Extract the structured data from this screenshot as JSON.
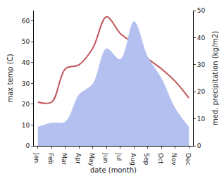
{
  "chart_data": {
    "type": "line",
    "xlabel": "date (month)",
    "ylabel": "max temp (C)",
    "y2label": "med. precipitation (kg/m2)",
    "categories": [
      "Jan",
      "Feb",
      "Mar",
      "Apr",
      "May",
      "Jun",
      "Jul",
      "Aug",
      "Sep",
      "Oct",
      "Nov",
      "Dec"
    ],
    "series": [
      {
        "type": "area",
        "axis": "y2",
        "color": "#b4c0f0",
        "values": [
          7,
          8.5,
          9,
          19,
          23,
          36,
          32,
          46,
          33,
          25,
          14,
          7
        ]
      },
      {
        "type": "line",
        "axis": "y",
        "color": "#c0585c",
        "values": [
          21,
          21,
          37,
          39,
          47,
          62,
          54,
          49,
          42,
          37,
          31,
          23
        ]
      }
    ],
    "ylim": [
      0,
      65
    ],
    "yticks": [
      0,
      10,
      20,
      30,
      40,
      50,
      60
    ],
    "y2lim": [
      0,
      50
    ],
    "y2ticks": [
      0,
      10,
      20,
      30,
      40,
      50
    ],
    "grid": false
  }
}
